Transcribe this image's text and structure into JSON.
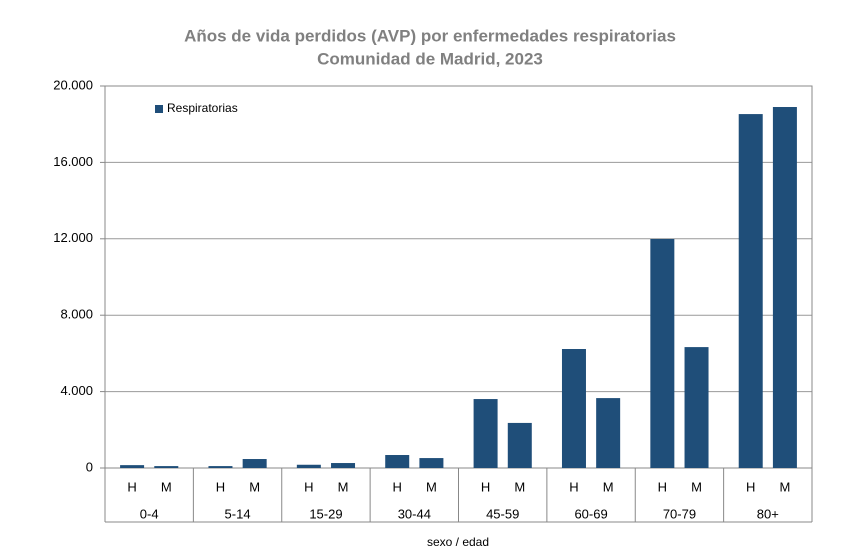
{
  "chart_data": {
    "type": "bar",
    "title": "Años de vida perdidos (AVP) por enfermedades respiratorias",
    "subtitle": "Comunidad de Madrid, 2023",
    "x_label": "sexo / edad",
    "categories": [
      "H",
      "M",
      "H",
      "M",
      "H",
      "M",
      "H",
      "M",
      "H",
      "M",
      "H",
      "M",
      "H",
      "M",
      "H",
      "M"
    ],
    "groups": [
      "0-4",
      "5-14",
      "15-29",
      "30-44",
      "45-59",
      "60-69",
      "70-79",
      "80+"
    ],
    "series": [
      {
        "name": "Respiratorias",
        "color": "#1f4e79",
        "values": [
          150,
          100,
          100,
          470,
          170,
          260,
          680,
          520,
          3610,
          2360,
          6230,
          3660,
          11990,
          6330,
          18530,
          18900
        ]
      }
    ],
    "ylim": [
      0,
      20000
    ],
    "yticks": [
      0,
      {
        "value": 4000,
        "label": "4.000"
      },
      {
        "value": 8000,
        "label": "8.000"
      },
      {
        "value": 12000,
        "label": "12.000"
      },
      {
        "value": 16000,
        "label": "16.000"
      },
      {
        "value": 20000,
        "label": "20.000"
      }
    ],
    "grid": true,
    "legend": "top-left"
  }
}
